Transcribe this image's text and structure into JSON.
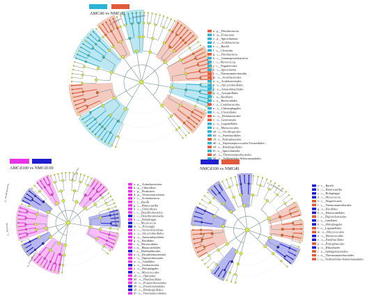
{
  "panels": [
    {
      "id": "top",
      "title": "AMCd0 vs NMCd0",
      "groups": [
        {
          "name": "AMCd0",
          "color": "#2bb3d6"
        },
        {
          "name": "NMCd0",
          "color": "#e05a3c"
        }
      ],
      "legend": [
        {
          "text": "a : p__Fibrobacterota",
          "group": 1
        },
        {
          "text": "b : p__Firmicutes",
          "group": 0
        },
        {
          "text": "c : p__Spirochaetota",
          "group": 0
        },
        {
          "text": "d : c__Acidobacteriae",
          "group": 0
        },
        {
          "text": "e : c__Bacilli",
          "group": 0
        },
        {
          "text": "f : c__Clostridia",
          "group": 0
        },
        {
          "text": "g : c__Fibrobacteria",
          "group": 1
        },
        {
          "text": "h : c__Gammaproteobacteria",
          "group": 0
        },
        {
          "text": "i : c__Myxococcia",
          "group": 0
        },
        {
          "text": "j : c__Negativicutes",
          "group": 0
        },
        {
          "text": "k : c__Spirochaetia",
          "group": 0
        },
        {
          "text": "l : c__Thermoanaerobaculia",
          "group": 1
        },
        {
          "text": "m : o__Acetobacterales",
          "group": 1
        },
        {
          "text": "n : o__Acidobacteriales",
          "group": 0
        },
        {
          "text": "o : o__Alicyclobacillales",
          "group": 0
        },
        {
          "text": "p : o__Aneurinibacillales",
          "group": 0
        },
        {
          "text": "q : o__Azospirillales",
          "group": 1
        },
        {
          "text": "r : o__Bacillales",
          "group": 0
        },
        {
          "text": "s : o__Bacteroidales",
          "group": 0
        },
        {
          "text": "t : o__Caulobacterales",
          "group": 1
        },
        {
          "text": "u : o__Chitinophagales",
          "group": 0
        },
        {
          "text": "v : o__Clostridiales",
          "group": 0
        },
        {
          "text": "w : o__Fibrobacterales",
          "group": 1
        },
        {
          "text": "x : o__Gemmatales",
          "group": 1
        },
        {
          "text": "y : o__Legionellales",
          "group": 0
        },
        {
          "text": "z : o__Myxococcales",
          "group": 0
        },
        {
          "text": "a0 : o__Oscillospirales",
          "group": 0
        },
        {
          "text": "b0 : o__Paenibacillales",
          "group": 0
        },
        {
          "text": "c0 : o__Pedosphaerales",
          "group": 1
        },
        {
          "text": "d0 : o__Peptostreptococcales-Tissierellales",
          "group": 0
        },
        {
          "text": "e0 : o__Rhodospirillales",
          "group": 1
        },
        {
          "text": "f0 : o__Spirochaetales",
          "group": 0
        },
        {
          "text": "g0 : o__Thermoanaerobaculales",
          "group": 1
        },
        {
          "text": "h0 : o__Veillonellales-Selenomonadales",
          "group": 0
        }
      ],
      "ring_labels": [
        "p__Firmicutes",
        "p__Proteobacteria"
      ]
    },
    {
      "id": "bottom-left",
      "title": "AMCd100 vs NMCd100",
      "groups": [
        {
          "name": "AMCd100",
          "color": "#e832e8"
        },
        {
          "name": "NMCd100",
          "color": "#1f1fd0"
        }
      ],
      "legend": [
        {
          "text": "a : p__Actinobacteriota",
          "group": 0
        },
        {
          "text": "b : p__Chloroflexi",
          "group": 0
        },
        {
          "text": "c : p__Firmicutes",
          "group": 0
        },
        {
          "text": "d : p__Verrucomicrobiota",
          "group": 0
        },
        {
          "text": "e : c__Actinobacteria",
          "group": 0
        },
        {
          "text": "f : c__Bacilli",
          "group": 0
        },
        {
          "text": "g : c__Blastocatellia",
          "group": 0
        },
        {
          "text": "h : c__Chloroflexia",
          "group": 0
        },
        {
          "text": "i : c__Desulfitobacteriia",
          "group": 0
        },
        {
          "text": "j : c__Desulfuromonadia",
          "group": 1
        },
        {
          "text": "k : c__Holophagae",
          "group": 0
        },
        {
          "text": "l : c__Myxococcia",
          "group": 1
        },
        {
          "text": "m : c__Polyangia",
          "group": 1
        },
        {
          "text": "n : c__Verrucomicrobiae",
          "group": 0
        },
        {
          "text": "o : o__Alicyclobacillales",
          "group": 0
        },
        {
          "text": "p : o__Aneurinibacillales",
          "group": 0
        },
        {
          "text": "q : o__Bacillales",
          "group": 0
        },
        {
          "text": "r : o__Bacteroidales",
          "group": 0
        },
        {
          "text": "s : o__Blastocatellales",
          "group": 0
        },
        {
          "text": "t : o__Burkholderiales",
          "group": 1
        },
        {
          "text": "u : o__Desulfitobacteriales",
          "group": 0
        },
        {
          "text": "v : o__Diplorickettsiales",
          "group": 0
        },
        {
          "text": "w : o__Gaiellales",
          "group": 0
        },
        {
          "text": "x : o__Geobacterales",
          "group": 1
        },
        {
          "text": "y : o__Holophagales",
          "group": 0
        },
        {
          "text": "z : o__Myxococcales",
          "group": 1
        },
        {
          "text": "a0 : o__Opitutales",
          "group": 0
        },
        {
          "text": "b0 : o__Paenibacillales",
          "group": 0
        },
        {
          "text": "c0 : o__Propionibacteriales",
          "group": 0
        },
        {
          "text": "d0 : o__Pseudomonadales",
          "group": 1
        },
        {
          "text": "e0 : o__Rhodospirillales",
          "group": 1
        },
        {
          "text": "f0 : o__Thermomicrobiales",
          "group": 0
        }
      ],
      "ring_labels": [
        "p__Desulfobacterota",
        "p__Firmicutes",
        "p__Proteobacteria",
        "p__Chloroflexi",
        "p__Actinobacteriota"
      ]
    },
    {
      "id": "bottom-right",
      "title": "NMCd100 vs NMCd0",
      "groups": [
        {
          "name": "NMCd100",
          "color": "#1f1fd0"
        },
        {
          "name": "NMCd0",
          "color": "#e05a3c"
        }
      ],
      "legend": [
        {
          "text": "a : c__Bacilli",
          "group": 0
        },
        {
          "text": "b : c__Blastocatellia",
          "group": 0
        },
        {
          "text": "c : c__Holophagae",
          "group": 0
        },
        {
          "text": "d : c__Myxococcia",
          "group": 0
        },
        {
          "text": "e : c__Negativicutes",
          "group": 1
        },
        {
          "text": "f : c__Thermoanaerobaculia",
          "group": 1
        },
        {
          "text": "g : o__Bacillales",
          "group": 0
        },
        {
          "text": "h : o__Blastocatellales",
          "group": 0
        },
        {
          "text": "i : o__Diplorickettsiales",
          "group": 1
        },
        {
          "text": "j : o__Gaiellales",
          "group": 0
        },
        {
          "text": "k : o__Holophagales",
          "group": 0
        },
        {
          "text": "l : o__Legionellales",
          "group": 1
        },
        {
          "text": "m : o__Micrococcales",
          "group": 1
        },
        {
          "text": "n : o__Myxococcales",
          "group": 0
        },
        {
          "text": "o : o__Paenibacillales",
          "group": 0
        },
        {
          "text": "p : o__Pedosphaerales",
          "group": 1
        },
        {
          "text": "q : o__Rhizobiales",
          "group": 0
        },
        {
          "text": "r : o__Sphingobacteriales",
          "group": 1
        },
        {
          "text": "s : o__Thermoanaerobaculales",
          "group": 1
        },
        {
          "text": "t : o__Veillonellales-Selenomonadales",
          "group": 1
        }
      ],
      "ring_labels": [
        "p__Firmicutes",
        "p__Acidobacteriota"
      ]
    }
  ],
  "colors": {
    "node": "#d8e84a",
    "branch": "#6f8f8f",
    "background": "#ffffff"
  }
}
